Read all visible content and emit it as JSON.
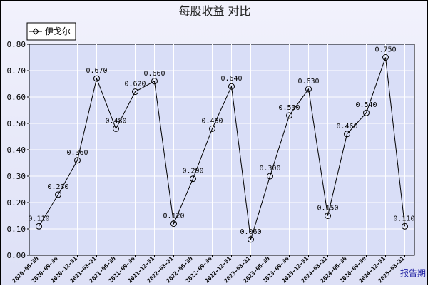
{
  "chart_data": {
    "type": "line",
    "title": "每股收益  对比",
    "corner_label": "报告期",
    "x": [
      "2020-06-30",
      "2020-09-30",
      "2020-12-31",
      "2021-03-31",
      "2021-06-30",
      "2021-09-30",
      "2021-12-31",
      "2022-03-31",
      "2022-06-30",
      "2022-09-30",
      "2022-12-31",
      "2023-03-31",
      "2023-06-30",
      "2023-09-30",
      "2023-12-31",
      "2024-03-31",
      "2024-06-30",
      "2024-09-30",
      "2024-12-31",
      "2025-03-31"
    ],
    "series": [
      {
        "name": "伊戈尔",
        "values": [
          0.11,
          0.23,
          0.36,
          0.67,
          0.48,
          0.62,
          0.66,
          0.12,
          0.29,
          0.48,
          0.64,
          0.06,
          0.3,
          0.53,
          0.63,
          0.15,
          0.46,
          0.54,
          0.75,
          0.11
        ],
        "labels": [
          "0.110",
          "0.230",
          "0.360",
          "0.670",
          "0.480",
          "0.620",
          "0.660",
          "0.120",
          "0.290",
          "0.480",
          "0.640",
          "0.060",
          "0.300",
          "0.530",
          "0.630",
          "0.150",
          "0.460",
          "0.540",
          "0.750",
          "0.110"
        ]
      }
    ],
    "yticks": [
      "0.00",
      "0.10",
      "0.20",
      "0.30",
      "0.40",
      "0.50",
      "0.60",
      "0.70",
      "0.80"
    ],
    "ylim": [
      0,
      0.8
    ],
    "grid": true,
    "legend_position": "top-left",
    "colors": {
      "plot_bg": "#d9def7",
      "line": "#000000",
      "grid": "#ffffff"
    }
  }
}
